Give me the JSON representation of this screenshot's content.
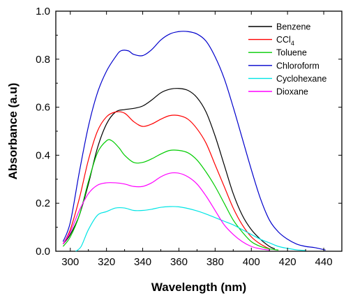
{
  "chart_data": {
    "type": "line",
    "title": "",
    "xlabel": "Wavelength (nm)",
    "ylabel": "Absorbance (a.u)",
    "xlim": [
      292,
      450
    ],
    "ylim": [
      0,
      1.0
    ],
    "x_ticks": [
      300,
      320,
      340,
      360,
      380,
      400,
      420,
      440
    ],
    "y_ticks": [
      0.0,
      0.2,
      0.4,
      0.6,
      0.8,
      1.0
    ],
    "x_tick_labels": [
      "300",
      "320",
      "340",
      "360",
      "380",
      "400",
      "420",
      "440"
    ],
    "y_tick_labels": [
      "0.0",
      "0.2",
      "0.4",
      "0.6",
      "0.8",
      "1.0"
    ],
    "grid": false,
    "legend_position": "top-right",
    "series": [
      {
        "name": "Benzene",
        "color": "#000000",
        "points": [
          [
            296,
            0.03
          ],
          [
            300,
            0.07
          ],
          [
            305,
            0.15
          ],
          [
            310,
            0.28
          ],
          [
            315,
            0.43
          ],
          [
            320,
            0.53
          ],
          [
            325,
            0.58
          ],
          [
            330,
            0.59
          ],
          [
            335,
            0.595
          ],
          [
            340,
            0.605
          ],
          [
            345,
            0.63
          ],
          [
            350,
            0.66
          ],
          [
            355,
            0.675
          ],
          [
            360,
            0.678
          ],
          [
            365,
            0.67
          ],
          [
            370,
            0.64
          ],
          [
            375,
            0.58
          ],
          [
            380,
            0.48
          ],
          [
            385,
            0.36
          ],
          [
            390,
            0.24
          ],
          [
            395,
            0.15
          ],
          [
            400,
            0.09
          ],
          [
            405,
            0.05
          ],
          [
            410,
            0.02
          ],
          [
            413,
            0.01
          ]
        ]
      },
      {
        "name": "CCl4",
        "color": "#ff0000",
        "points": [
          [
            296,
            0.03
          ],
          [
            300,
            0.09
          ],
          [
            305,
            0.22
          ],
          [
            310,
            0.38
          ],
          [
            315,
            0.5
          ],
          [
            320,
            0.56
          ],
          [
            325,
            0.58
          ],
          [
            330,
            0.575
          ],
          [
            335,
            0.54
          ],
          [
            340,
            0.52
          ],
          [
            345,
            0.53
          ],
          [
            350,
            0.55
          ],
          [
            355,
            0.565
          ],
          [
            360,
            0.565
          ],
          [
            365,
            0.55
          ],
          [
            370,
            0.51
          ],
          [
            375,
            0.45
          ],
          [
            380,
            0.36
          ],
          [
            385,
            0.27
          ],
          [
            390,
            0.18
          ],
          [
            395,
            0.11
          ],
          [
            400,
            0.06
          ],
          [
            405,
            0.03
          ],
          [
            410,
            0.01
          ]
        ]
      },
      {
        "name": "Toluene",
        "color": "#00cc00",
        "points": [
          [
            296,
            0.02
          ],
          [
            300,
            0.06
          ],
          [
            305,
            0.15
          ],
          [
            310,
            0.29
          ],
          [
            315,
            0.41
          ],
          [
            320,
            0.46
          ],
          [
            323,
            0.46
          ],
          [
            327,
            0.43
          ],
          [
            330,
            0.4
          ],
          [
            335,
            0.37
          ],
          [
            340,
            0.37
          ],
          [
            345,
            0.385
          ],
          [
            350,
            0.405
          ],
          [
            355,
            0.42
          ],
          [
            360,
            0.42
          ],
          [
            365,
            0.41
          ],
          [
            370,
            0.38
          ],
          [
            375,
            0.33
          ],
          [
            380,
            0.27
          ],
          [
            385,
            0.2
          ],
          [
            390,
            0.13
          ],
          [
            395,
            0.08
          ],
          [
            400,
            0.04
          ],
          [
            405,
            0.02
          ],
          [
            410,
            0.01
          ],
          [
            415,
            0.005
          ]
        ]
      },
      {
        "name": "Chloroform",
        "color": "#0000cc",
        "points": [
          [
            296,
            0.04
          ],
          [
            300,
            0.12
          ],
          [
            305,
            0.33
          ],
          [
            310,
            0.52
          ],
          [
            315,
            0.66
          ],
          [
            320,
            0.75
          ],
          [
            325,
            0.81
          ],
          [
            328,
            0.835
          ],
          [
            332,
            0.835
          ],
          [
            335,
            0.82
          ],
          [
            340,
            0.815
          ],
          [
            345,
            0.84
          ],
          [
            350,
            0.88
          ],
          [
            355,
            0.905
          ],
          [
            360,
            0.915
          ],
          [
            365,
            0.915
          ],
          [
            370,
            0.905
          ],
          [
            375,
            0.875
          ],
          [
            380,
            0.81
          ],
          [
            385,
            0.72
          ],
          [
            390,
            0.6
          ],
          [
            395,
            0.47
          ],
          [
            400,
            0.34
          ],
          [
            405,
            0.22
          ],
          [
            410,
            0.13
          ],
          [
            415,
            0.08
          ],
          [
            420,
            0.05
          ],
          [
            425,
            0.03
          ],
          [
            430,
            0.02
          ],
          [
            435,
            0.015
          ],
          [
            441,
            0.005
          ]
        ]
      },
      {
        "name": "Cyclohexane",
        "color": "#00e5e5",
        "points": [
          [
            303,
            0.0
          ],
          [
            306,
            0.02
          ],
          [
            310,
            0.09
          ],
          [
            315,
            0.15
          ],
          [
            320,
            0.165
          ],
          [
            325,
            0.18
          ],
          [
            330,
            0.18
          ],
          [
            335,
            0.17
          ],
          [
            340,
            0.17
          ],
          [
            345,
            0.175
          ],
          [
            350,
            0.183
          ],
          [
            355,
            0.186
          ],
          [
            360,
            0.185
          ],
          [
            365,
            0.178
          ],
          [
            370,
            0.168
          ],
          [
            375,
            0.155
          ],
          [
            380,
            0.14
          ],
          [
            385,
            0.125
          ],
          [
            390,
            0.11
          ],
          [
            395,
            0.09
          ],
          [
            400,
            0.07
          ],
          [
            405,
            0.05
          ],
          [
            410,
            0.035
          ],
          [
            415,
            0.02
          ],
          [
            420,
            0.012
          ],
          [
            425,
            0.006
          ],
          [
            430,
            0.003
          ]
        ]
      },
      {
        "name": "Dioxane",
        "color": "#ff00ff",
        "points": [
          [
            296,
            0.03
          ],
          [
            300,
            0.08
          ],
          [
            305,
            0.17
          ],
          [
            310,
            0.24
          ],
          [
            315,
            0.275
          ],
          [
            320,
            0.285
          ],
          [
            325,
            0.285
          ],
          [
            330,
            0.28
          ],
          [
            335,
            0.27
          ],
          [
            340,
            0.27
          ],
          [
            345,
            0.285
          ],
          [
            350,
            0.31
          ],
          [
            355,
            0.325
          ],
          [
            360,
            0.325
          ],
          [
            365,
            0.31
          ],
          [
            370,
            0.28
          ],
          [
            375,
            0.23
          ],
          [
            380,
            0.17
          ],
          [
            385,
            0.11
          ],
          [
            390,
            0.07
          ],
          [
            395,
            0.04
          ],
          [
            400,
            0.02
          ],
          [
            405,
            0.01
          ],
          [
            410,
            0.005
          ]
        ]
      }
    ]
  }
}
